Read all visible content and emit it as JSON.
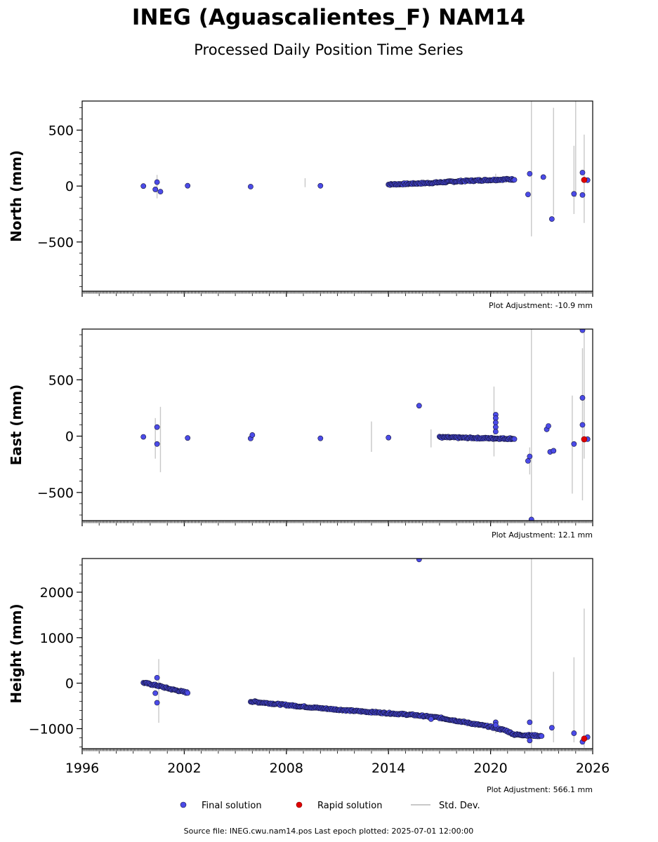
{
  "title": "INEG (Aguascalientes_F) NAM14",
  "subtitle": "Processed Daily Position Time Series",
  "legend": {
    "final": "Final solution",
    "rapid": "Rapid solution",
    "stddev": "Std. Dev."
  },
  "source": "Source file: INEG.cwu.nam14.pos  Last epoch plotted: 2025-07-01 12:00:00",
  "colors": {
    "final_fill": "#4b4be8",
    "final_edge": "#16163a",
    "rapid": "#e00000",
    "stddev": "#c8c8c8"
  },
  "chart_data": [
    {
      "type": "scatter",
      "ylabel": "North (mm)",
      "xlim": [
        1996,
        2026
      ],
      "ylim": [
        -940,
        760
      ],
      "xticks": [
        1996,
        2002,
        2008,
        2014,
        2020,
        2026
      ],
      "yticks": [
        500,
        0,
        -500
      ],
      "ytick_labels": [
        "500",
        "0",
        "−500"
      ],
      "show_xtick_labels": false,
      "adjustment": "Plot Adjustment: -10.9 mm",
      "trend": [
        [
          1999.6,
          0
        ],
        [
          2002.2,
          2
        ],
        [
          2005.9,
          0
        ],
        [
          2010,
          6
        ],
        [
          2014,
          14
        ],
        [
          2016.5,
          28
        ],
        [
          2018,
          42
        ],
        [
          2020,
          55
        ],
        [
          2020.9,
          60
        ],
        [
          2021.4,
          60
        ],
        [
          2025.7,
          55
        ]
      ],
      "outliers": [
        [
          2000.4,
          35
        ],
        [
          2000.6,
          -50
        ],
        [
          2000.3,
          -30
        ],
        [
          2022.3,
          110
        ],
        [
          2022.2,
          -75
        ],
        [
          2023.6,
          -295
        ],
        [
          2024.9,
          -70
        ],
        [
          2025.4,
          -80
        ],
        [
          2025.4,
          120
        ],
        [
          2023.1,
          80
        ]
      ],
      "errorbars": [
        [
          2022.4,
          -450,
          760
        ],
        [
          2023.7,
          -260,
          700
        ],
        [
          2024.9,
          -250,
          360
        ],
        [
          2025.0,
          -100,
          760
        ],
        [
          2025.5,
          -330,
          460
        ],
        [
          2000.4,
          -110,
          100
        ],
        [
          2020.3,
          20,
          110
        ],
        [
          2009.1,
          -10,
          70
        ]
      ],
      "rapid": [
        [
          2025.5,
          55
        ]
      ]
    },
    {
      "type": "scatter",
      "ylabel": "East (mm)",
      "xlim": [
        1996,
        2026
      ],
      "ylim": [
        -750,
        950
      ],
      "xticks": [
        1996,
        2002,
        2008,
        2014,
        2020,
        2026
      ],
      "yticks": [
        500,
        0,
        -500
      ],
      "ytick_labels": [
        "500",
        "0",
        "−500"
      ],
      "show_xtick_labels": false,
      "adjustment": "Plot Adjustment: 12.1 mm",
      "trend": [
        [
          1999.6,
          0
        ],
        [
          2002.2,
          -18
        ],
        [
          2005.9,
          -20
        ],
        [
          2010,
          -18
        ],
        [
          2014,
          -14
        ],
        [
          2017,
          -10
        ],
        [
          2019.5,
          -18
        ],
        [
          2020.9,
          -22
        ],
        [
          2021.4,
          -22
        ],
        [
          2025.7,
          -30
        ]
      ],
      "outliers": [
        [
          2015.8,
          270
        ],
        [
          2020.3,
          190
        ],
        [
          2020.3,
          160
        ],
        [
          2020.3,
          120
        ],
        [
          2020.3,
          80
        ],
        [
          2020.3,
          40
        ],
        [
          2022.2,
          -220
        ],
        [
          2022.3,
          -180
        ],
        [
          2022.4,
          -740
        ],
        [
          2023.3,
          60
        ],
        [
          2023.4,
          90
        ],
        [
          2023.5,
          -140
        ],
        [
          2023.7,
          -130
        ],
        [
          2025.4,
          100
        ],
        [
          2025.4,
          340
        ],
        [
          2025.4,
          940
        ],
        [
          2000.4,
          80
        ],
        [
          2000.4,
          -70
        ],
        [
          2024.9,
          -70
        ],
        [
          2006.0,
          10
        ]
      ],
      "errorbars": [
        [
          2022.4,
          -750,
          950
        ],
        [
          2022.3,
          -340,
          -100
        ],
        [
          2024.8,
          -510,
          360
        ],
        [
          2025.4,
          -570,
          780
        ],
        [
          2025.5,
          -200,
          950
        ],
        [
          2000.6,
          -320,
          260
        ],
        [
          2000.3,
          -200,
          160
        ],
        [
          2020.2,
          -180,
          440
        ],
        [
          2013.0,
          -140,
          130
        ],
        [
          2016.5,
          -100,
          60
        ]
      ],
      "rapid": [
        [
          2025.5,
          -28
        ]
      ]
    },
    {
      "type": "scatter",
      "ylabel": "Height (mm)",
      "xlim": [
        1996,
        2026
      ],
      "ylim": [
        -1440,
        2740
      ],
      "xticks": [
        1996,
        2002,
        2008,
        2014,
        2020,
        2026
      ],
      "yticks": [
        2000,
        1000,
        0,
        -1000
      ],
      "ytick_labels": [
        "2000",
        "1000",
        "0",
        "−1000"
      ],
      "show_xtick_labels": true,
      "adjustment": "Plot Adjustment: 566.1 mm",
      "trend": [
        [
          1999.6,
          10
        ],
        [
          2000.5,
          -60
        ],
        [
          2001.2,
          -130
        ],
        [
          2002.2,
          -210
        ],
        [
          2005.9,
          -400
        ],
        [
          2008,
          -480
        ],
        [
          2010,
          -550
        ],
        [
          2012,
          -610
        ],
        [
          2014,
          -660
        ],
        [
          2015.5,
          -700
        ],
        [
          2017,
          -760
        ],
        [
          2018.5,
          -860
        ],
        [
          2020,
          -960
        ],
        [
          2020.9,
          -1040
        ],
        [
          2021.4,
          -1130
        ],
        [
          2023,
          -1160
        ],
        [
          2025.7,
          -1200
        ]
      ],
      "outliers": [
        [
          2015.8,
          2720
        ],
        [
          2000.4,
          -430
        ],
        [
          2000.4,
          120
        ],
        [
          2000.3,
          -220
        ],
        [
          2016.5,
          -790
        ],
        [
          2020.3,
          -860
        ],
        [
          2020.3,
          -920
        ],
        [
          2022.3,
          -860
        ],
        [
          2022.3,
          -1260
        ],
        [
          2023.6,
          -980
        ],
        [
          2024.9,
          -1100
        ],
        [
          2025.4,
          -1290
        ]
      ],
      "errorbars": [
        [
          2022.4,
          -1440,
          2740
        ],
        [
          2023.7,
          -1300,
          250
        ],
        [
          2024.9,
          -1300,
          570
        ],
        [
          2025.5,
          -1420,
          1640
        ],
        [
          2000.5,
          -870,
          530
        ],
        [
          2020.3,
          -1100,
          -800
        ]
      ],
      "rapid": [
        [
          2025.5,
          -1220
        ]
      ]
    }
  ]
}
